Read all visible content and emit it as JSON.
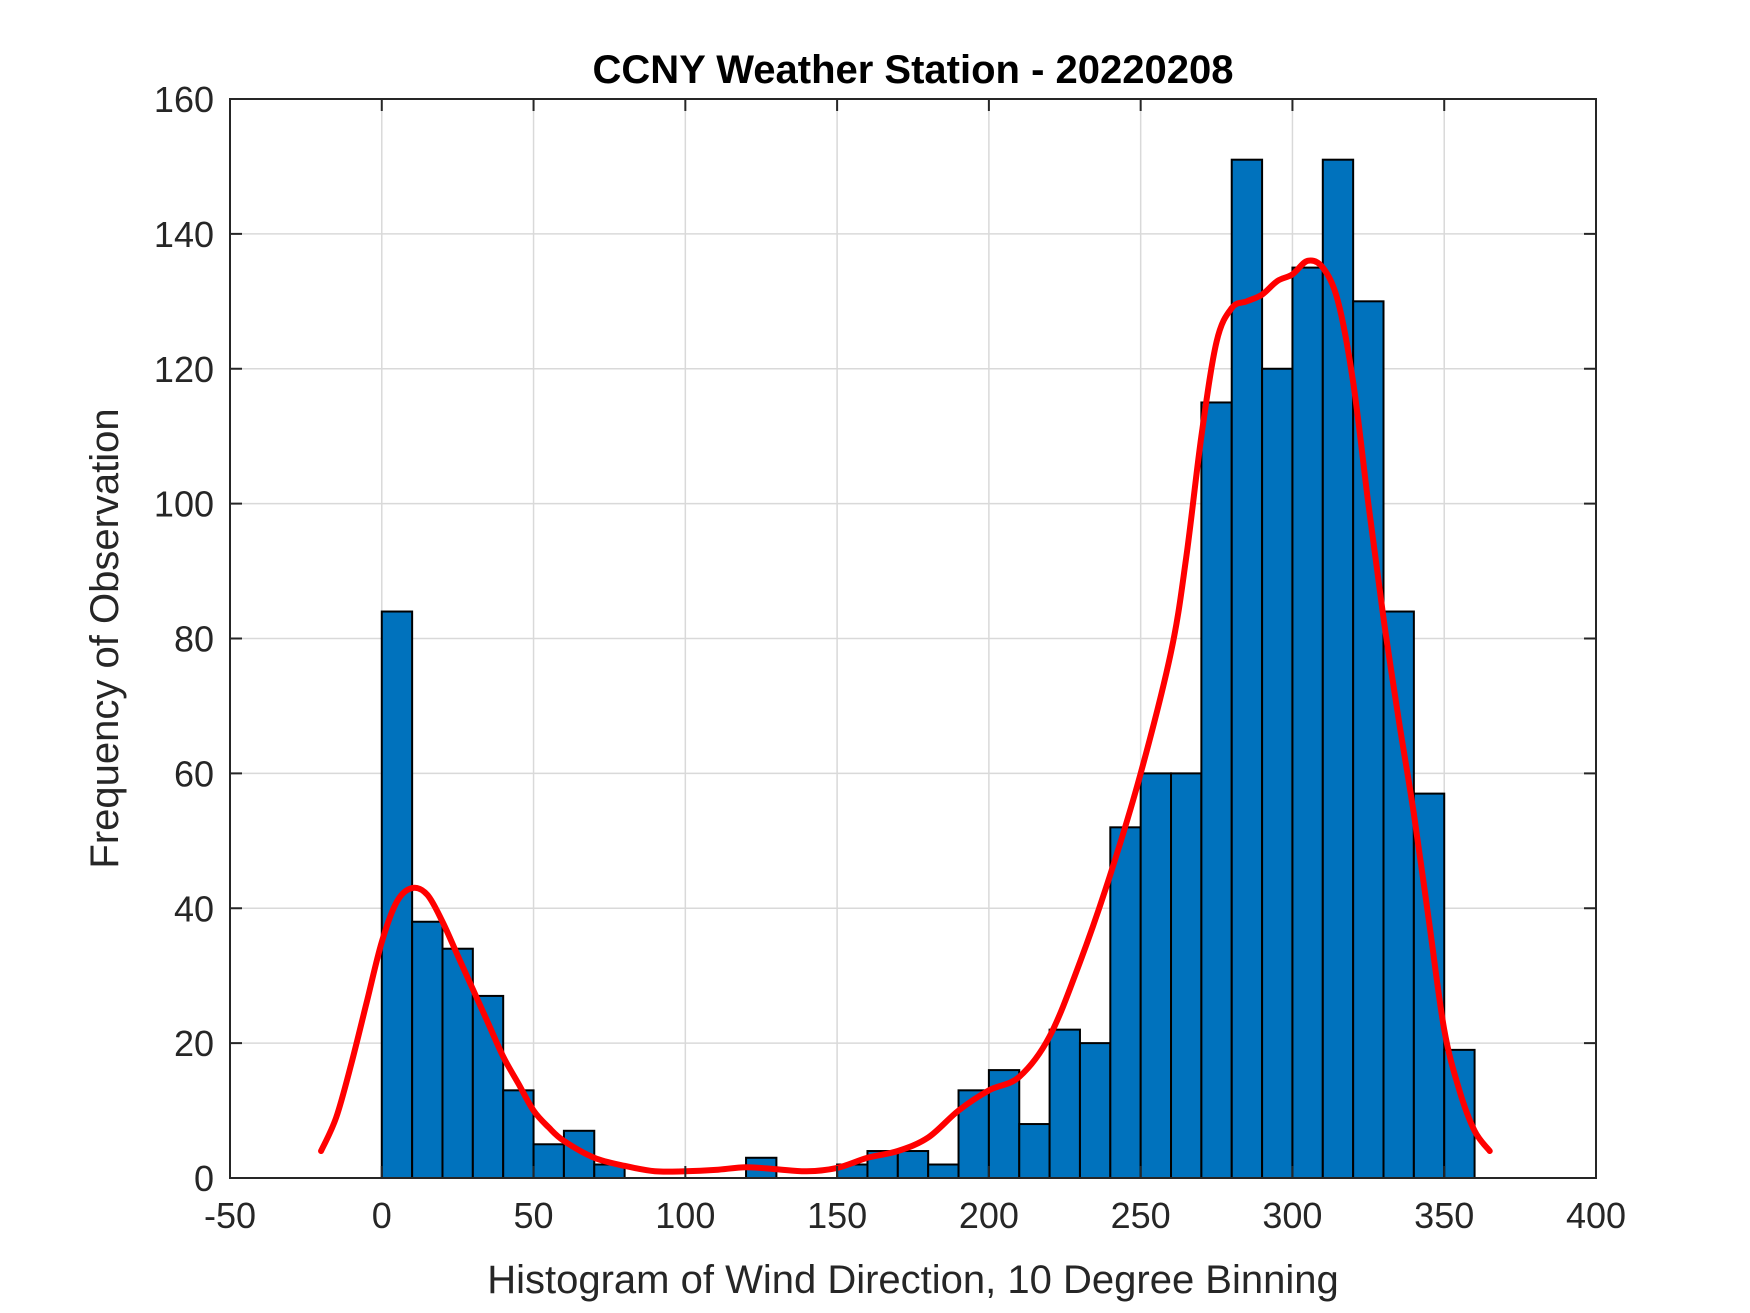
{
  "chart_data": {
    "type": "bar",
    "title": "CCNY Weather Station - 20220208",
    "xlabel": "Histogram of Wind Direction, 10 Degree Binning",
    "ylabel": "Frequency of Observation",
    "xlim": [
      -50,
      400
    ],
    "ylim": [
      0,
      160
    ],
    "xticks": [
      -50,
      0,
      50,
      100,
      150,
      200,
      250,
      300,
      350,
      400
    ],
    "yticks": [
      0,
      20,
      40,
      60,
      80,
      100,
      120,
      140,
      160
    ],
    "grid": true,
    "bin_width": 10,
    "bin_edges": [
      0,
      10,
      20,
      30,
      40,
      50,
      60,
      70,
      80,
      90,
      100,
      110,
      120,
      130,
      140,
      150,
      160,
      170,
      180,
      190,
      200,
      210,
      220,
      230,
      240,
      250,
      260,
      270,
      280,
      290,
      300,
      310,
      320,
      330,
      340,
      350
    ],
    "values": [
      84,
      38,
      34,
      27,
      13,
      5,
      7,
      2,
      0,
      0,
      0,
      0,
      3,
      0,
      0,
      2,
      4,
      4,
      2,
      13,
      16,
      8,
      22,
      20,
      52,
      60,
      60,
      115,
      151,
      120,
      135,
      151,
      130,
      84,
      57,
      19
    ],
    "bar_color": "#0072BD",
    "bar_edge_color": "#000000",
    "curve": {
      "color": "#FF0000",
      "x": [
        -20,
        -15,
        -10,
        -5,
        0,
        5,
        10,
        15,
        20,
        25,
        30,
        35,
        40,
        45,
        50,
        55,
        60,
        70,
        80,
        90,
        100,
        110,
        120,
        130,
        140,
        150,
        160,
        170,
        180,
        190,
        200,
        210,
        220,
        230,
        240,
        250,
        260,
        265,
        270,
        275,
        280,
        285,
        290,
        295,
        300,
        305,
        310,
        315,
        320,
        325,
        330,
        335,
        340,
        345,
        350,
        355,
        360,
        365
      ],
      "y": [
        4,
        9,
        17,
        26,
        35,
        41,
        43,
        42,
        38,
        33,
        28,
        23,
        18,
        14,
        10,
        7.5,
        5.5,
        3,
        1.8,
        1,
        1,
        1.2,
        1.6,
        1.3,
        1,
        1.5,
        3,
        4,
        6,
        10,
        13,
        15,
        21,
        32,
        45,
        60,
        78,
        92,
        110,
        124,
        129,
        130,
        131,
        133,
        134,
        136,
        135,
        130,
        118,
        100,
        83,
        68,
        54,
        38,
        22,
        13,
        7,
        4
      ]
    },
    "colors": {
      "grid": "#D9D9D9",
      "axis": "#262626",
      "title": "#000000"
    }
  }
}
